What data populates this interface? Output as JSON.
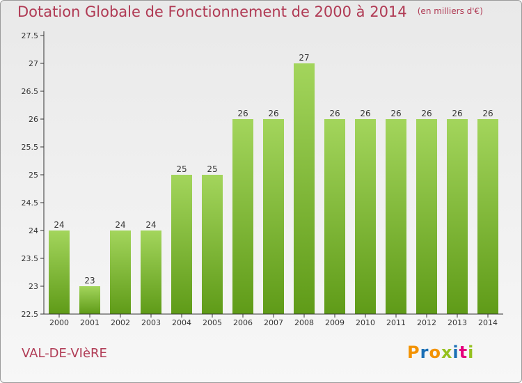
{
  "header": {
    "title": "Dotation Globale de Fonctionnement de 2000 à 2014",
    "subtitle": "(en milliers d'€)"
  },
  "footer": {
    "commune": "VAL-DE-VIèRE",
    "logo_text": "Proxiti",
    "logo_colors": [
      "#f39200",
      "#1a6fb5",
      "#f39200",
      "#95c11f",
      "#1a6fb5",
      "#e6007e",
      "#95c11f"
    ]
  },
  "colors": {
    "bar_top": "#a3d55c",
    "bar_bottom": "#5f9b18",
    "title": "#b03a54"
  },
  "chart_data": {
    "type": "bar",
    "title": "Dotation Globale de Fonctionnement de 2000 à 2014",
    "subtitle": "(en milliers d'€)",
    "xlabel": "",
    "ylabel": "",
    "categories": [
      "2000",
      "2001",
      "2002",
      "2003",
      "2004",
      "2005",
      "2006",
      "2007",
      "2008",
      "2009",
      "2010",
      "2011",
      "2012",
      "2013",
      "2014"
    ],
    "values": [
      24,
      23,
      24,
      24,
      25,
      25,
      26,
      26,
      27,
      26,
      26,
      26,
      26,
      26,
      26
    ],
    "labels": [
      "24",
      "23",
      "24",
      "24",
      "25",
      "25",
      "26",
      "26",
      "27",
      "26",
      "26",
      "26",
      "26",
      "26",
      "26"
    ],
    "ylim": [
      22.5,
      27.5
    ],
    "yticks": [
      "22.5",
      "23",
      "23.5",
      "24",
      "24.5",
      "25",
      "25.5",
      "26",
      "26.5",
      "27",
      "27.5"
    ],
    "grid": false,
    "legend": "none"
  }
}
